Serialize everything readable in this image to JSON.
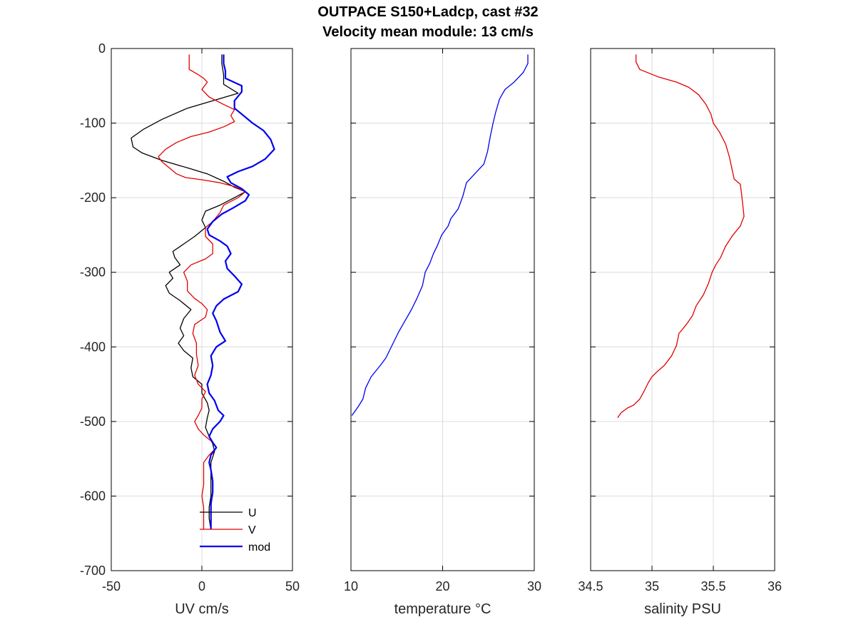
{
  "figure": {
    "title": "OUTPACE S150+Ladcp, cast #32",
    "subtitle": "Velocity mean module:  13 cm/s"
  },
  "chart_data": [
    {
      "type": "line",
      "xlabel": "UV cm/s",
      "ylabel": "",
      "xlim": [
        -50,
        50
      ],
      "ylim": [
        -700,
        0
      ],
      "xticks": [
        -50,
        0,
        50
      ],
      "yticks": [
        0,
        -100,
        -200,
        -300,
        -400,
        -500,
        -600,
        -700
      ],
      "grid": true,
      "legend": "bottom-right",
      "series": [
        {
          "name": "U",
          "color": "#000000",
          "points": [
            [
              11,
              -8
            ],
            [
              11,
              -20
            ],
            [
              12,
              -35
            ],
            [
              12,
              -48
            ],
            [
              20,
              -60
            ],
            [
              6,
              -70
            ],
            [
              -8,
              -80
            ],
            [
              -22,
              -95
            ],
            [
              -32,
              -108
            ],
            [
              -39,
              -120
            ],
            [
              -38,
              -132
            ],
            [
              -33,
              -140
            ],
            [
              -22,
              -150
            ],
            [
              -8,
              -160
            ],
            [
              3,
              -168
            ],
            [
              12,
              -178
            ],
            [
              18,
              -186
            ],
            [
              24,
              -192
            ],
            [
              18,
              -200
            ],
            [
              10,
              -210
            ],
            [
              2,
              -218
            ],
            [
              0,
              -230
            ],
            [
              2,
              -240
            ],
            [
              -4,
              -252
            ],
            [
              -10,
              -262
            ],
            [
              -16,
              -272
            ],
            [
              -15,
              -280
            ],
            [
              -12,
              -290
            ],
            [
              -18,
              -300
            ],
            [
              -16,
              -308
            ],
            [
              -20,
              -318
            ],
            [
              -18,
              -328
            ],
            [
              -12,
              -338
            ],
            [
              -6,
              -350
            ],
            [
              -10,
              -362
            ],
            [
              -12,
              -375
            ],
            [
              -10,
              -385
            ],
            [
              -13,
              -395
            ],
            [
              -10,
              -405
            ],
            [
              -5,
              -415
            ],
            [
              -6,
              -428
            ],
            [
              -5,
              -440
            ],
            [
              0,
              -450
            ],
            [
              0,
              -462
            ],
            [
              3,
              -475
            ],
            [
              4,
              -485
            ],
            [
              3,
              -495
            ],
            [
              2,
              -508
            ],
            [
              4,
              -520
            ],
            [
              6,
              -530
            ],
            [
              7,
              -540
            ],
            [
              5,
              -555
            ],
            [
              5,
              -570
            ],
            [
              5,
              -585
            ],
            [
              5,
              -600
            ],
            [
              4,
              -615
            ],
            [
              4,
              -630
            ],
            [
              5,
              -645
            ]
          ]
        },
        {
          "name": "V",
          "color": "#e00000",
          "points": [
            [
              -7,
              -8
            ],
            [
              -7,
              -28
            ],
            [
              -2,
              -35
            ],
            [
              1,
              -40
            ],
            [
              3,
              -45
            ],
            [
              0,
              -55
            ],
            [
              4,
              -65
            ],
            [
              12,
              -75
            ],
            [
              18,
              -82
            ],
            [
              16,
              -90
            ],
            [
              18,
              -98
            ],
            [
              12,
              -105
            ],
            [
              4,
              -112
            ],
            [
              -6,
              -118
            ],
            [
              -14,
              -126
            ],
            [
              -20,
              -135
            ],
            [
              -24,
              -145
            ],
            [
              -22,
              -152
            ],
            [
              -18,
              -160
            ],
            [
              -14,
              -168
            ],
            [
              -9,
              -173
            ],
            [
              0,
              -176
            ],
            [
              10,
              -180
            ],
            [
              18,
              -185
            ],
            [
              24,
              -192
            ],
            [
              20,
              -200
            ],
            [
              12,
              -210
            ],
            [
              10,
              -220
            ],
            [
              6,
              -232
            ],
            [
              2,
              -240
            ],
            [
              2,
              -252
            ],
            [
              6,
              -262
            ],
            [
              6,
              -275
            ],
            [
              2,
              -282
            ],
            [
              -6,
              -290
            ],
            [
              -10,
              -300
            ],
            [
              -8,
              -312
            ],
            [
              -8,
              -325
            ],
            [
              -4,
              -335
            ],
            [
              0,
              -342
            ],
            [
              3,
              -350
            ],
            [
              2,
              -360
            ],
            [
              -4,
              -370
            ],
            [
              -5,
              -382
            ],
            [
              -3,
              -395
            ],
            [
              -3,
              -410
            ],
            [
              -2,
              -425
            ],
            [
              -4,
              -438
            ],
            [
              -2,
              -450
            ],
            [
              2,
              -460
            ],
            [
              0,
              -470
            ],
            [
              0,
              -482
            ],
            [
              -2,
              -492
            ],
            [
              -4,
              -500
            ],
            [
              -2,
              -510
            ],
            [
              1,
              -518
            ],
            [
              5,
              -526
            ],
            [
              8,
              -535
            ],
            [
              4,
              -545
            ],
            [
              1,
              -555
            ],
            [
              1,
              -570
            ],
            [
              1,
              -585
            ],
            [
              0,
              -600
            ],
            [
              1,
              -615
            ],
            [
              1,
              -630
            ],
            [
              1,
              -645
            ]
          ]
        },
        {
          "name": "mod",
          "color": "#0000ee",
          "points": [
            [
              12,
              -8
            ],
            [
              12,
              -20
            ],
            [
              13,
              -30
            ],
            [
              13,
              -40
            ],
            [
              22,
              -50
            ],
            [
              22,
              -58
            ],
            [
              18,
              -70
            ],
            [
              18,
              -80
            ],
            [
              22,
              -88
            ],
            [
              28,
              -100
            ],
            [
              34,
              -110
            ],
            [
              38,
              -122
            ],
            [
              40,
              -135
            ],
            [
              35,
              -148
            ],
            [
              28,
              -158
            ],
            [
              20,
              -165
            ],
            [
              14,
              -172
            ],
            [
              16,
              -180
            ],
            [
              22,
              -188
            ],
            [
              26,
              -196
            ],
            [
              24,
              -204
            ],
            [
              17,
              -214
            ],
            [
              11,
              -222
            ],
            [
              6,
              -232
            ],
            [
              3,
              -242
            ],
            [
              4,
              -250
            ],
            [
              10,
              -258
            ],
            [
              14,
              -265
            ],
            [
              16,
              -275
            ],
            [
              13,
              -285
            ],
            [
              14,
              -295
            ],
            [
              18,
              -305
            ],
            [
              22,
              -316
            ],
            [
              20,
              -326
            ],
            [
              12,
              -336
            ],
            [
              8,
              -345
            ],
            [
              6,
              -355
            ],
            [
              8,
              -365
            ],
            [
              10,
              -380
            ],
            [
              13,
              -392
            ],
            [
              8,
              -400
            ],
            [
              5,
              -412
            ],
            [
              6,
              -425
            ],
            [
              5,
              -438
            ],
            [
              3,
              -450
            ],
            [
              4,
              -462
            ],
            [
              7,
              -472
            ],
            [
              9,
              -485
            ],
            [
              12,
              -492
            ],
            [
              10,
              -500
            ],
            [
              6,
              -510
            ],
            [
              4,
              -520
            ],
            [
              6,
              -528
            ],
            [
              8,
              -535
            ],
            [
              5,
              -545
            ],
            [
              4,
              -555
            ],
            [
              5,
              -565
            ],
            [
              6,
              -580
            ],
            [
              6,
              -595
            ],
            [
              5,
              -610
            ],
            [
              5,
              -625
            ],
            [
              5,
              -645
            ]
          ]
        }
      ]
    },
    {
      "type": "line",
      "xlabel": "temperature °C",
      "ylabel": "",
      "xlim": [
        10,
        30
      ],
      "ylim": [
        -700,
        0
      ],
      "xticks": [
        10,
        20,
        30
      ],
      "yticks": [
        0,
        -100,
        -200,
        -300,
        -400,
        -500,
        -600,
        -700
      ],
      "grid": true,
      "series": [
        {
          "color": "#0000ee",
          "points": [
            [
              29.3,
              -8
            ],
            [
              29.3,
              -20
            ],
            [
              28.8,
              -32
            ],
            [
              27.8,
              -45
            ],
            [
              26.8,
              -55
            ],
            [
              26.2,
              -68
            ],
            [
              25.8,
              -85
            ],
            [
              25.5,
              -100
            ],
            [
              25.2,
              -118
            ],
            [
              24.9,
              -138
            ],
            [
              24.5,
              -155
            ],
            [
              23.5,
              -168
            ],
            [
              22.6,
              -180
            ],
            [
              22.2,
              -198
            ],
            [
              21.7,
              -215
            ],
            [
              20.9,
              -228
            ],
            [
              20.6,
              -238
            ],
            [
              19.9,
              -250
            ],
            [
              19.4,
              -265
            ],
            [
              19,
              -275
            ],
            [
              18.6,
              -288
            ],
            [
              18.1,
              -300
            ],
            [
              17.8,
              -318
            ],
            [
              17.2,
              -335
            ],
            [
              16.6,
              -350
            ],
            [
              15.9,
              -365
            ],
            [
              15.2,
              -380
            ],
            [
              14.6,
              -395
            ],
            [
              13.8,
              -415
            ],
            [
              13.2,
              -425
            ],
            [
              12.2,
              -440
            ],
            [
              11.6,
              -455
            ],
            [
              11.3,
              -470
            ],
            [
              10.8,
              -480
            ],
            [
              10.1,
              -492
            ]
          ]
        }
      ]
    },
    {
      "type": "line",
      "xlabel": "salinity PSU",
      "ylabel": "",
      "xlim": [
        34.5,
        36
      ],
      "ylim": [
        -700,
        0
      ],
      "xticks": [
        34.5,
        35,
        35.5,
        36
      ],
      "yticks": [
        0,
        -100,
        -200,
        -300,
        -400,
        -500,
        -600,
        -700
      ],
      "grid": true,
      "series": [
        {
          "color": "#e00000",
          "points": [
            [
              34.87,
              -8
            ],
            [
              34.87,
              -18
            ],
            [
              34.9,
              -28
            ],
            [
              35.05,
              -38
            ],
            [
              35.2,
              -45
            ],
            [
              35.3,
              -52
            ],
            [
              35.38,
              -62
            ],
            [
              35.44,
              -75
            ],
            [
              35.48,
              -88
            ],
            [
              35.5,
              -100
            ],
            [
              35.55,
              -112
            ],
            [
              35.6,
              -128
            ],
            [
              35.63,
              -145
            ],
            [
              35.65,
              -160
            ],
            [
              35.67,
              -175
            ],
            [
              35.72,
              -182
            ],
            [
              35.73,
              -195
            ],
            [
              35.74,
              -210
            ],
            [
              35.75,
              -225
            ],
            [
              35.72,
              -238
            ],
            [
              35.66,
              -250
            ],
            [
              35.6,
              -265
            ],
            [
              35.56,
              -280
            ],
            [
              35.52,
              -290
            ],
            [
              35.49,
              -300
            ],
            [
              35.46,
              -315
            ],
            [
              35.42,
              -330
            ],
            [
              35.36,
              -345
            ],
            [
              35.33,
              -358
            ],
            [
              35.28,
              -370
            ],
            [
              35.22,
              -382
            ],
            [
              35.2,
              -398
            ],
            [
              35.16,
              -412
            ],
            [
              35.1,
              -425
            ],
            [
              35.05,
              -432
            ],
            [
              35,
              -440
            ],
            [
              34.97,
              -448
            ],
            [
              34.94,
              -458
            ],
            [
              34.9,
              -470
            ],
            [
              34.85,
              -478
            ],
            [
              34.8,
              -482
            ],
            [
              34.75,
              -488
            ],
            [
              34.72,
              -495
            ]
          ]
        }
      ]
    }
  ]
}
